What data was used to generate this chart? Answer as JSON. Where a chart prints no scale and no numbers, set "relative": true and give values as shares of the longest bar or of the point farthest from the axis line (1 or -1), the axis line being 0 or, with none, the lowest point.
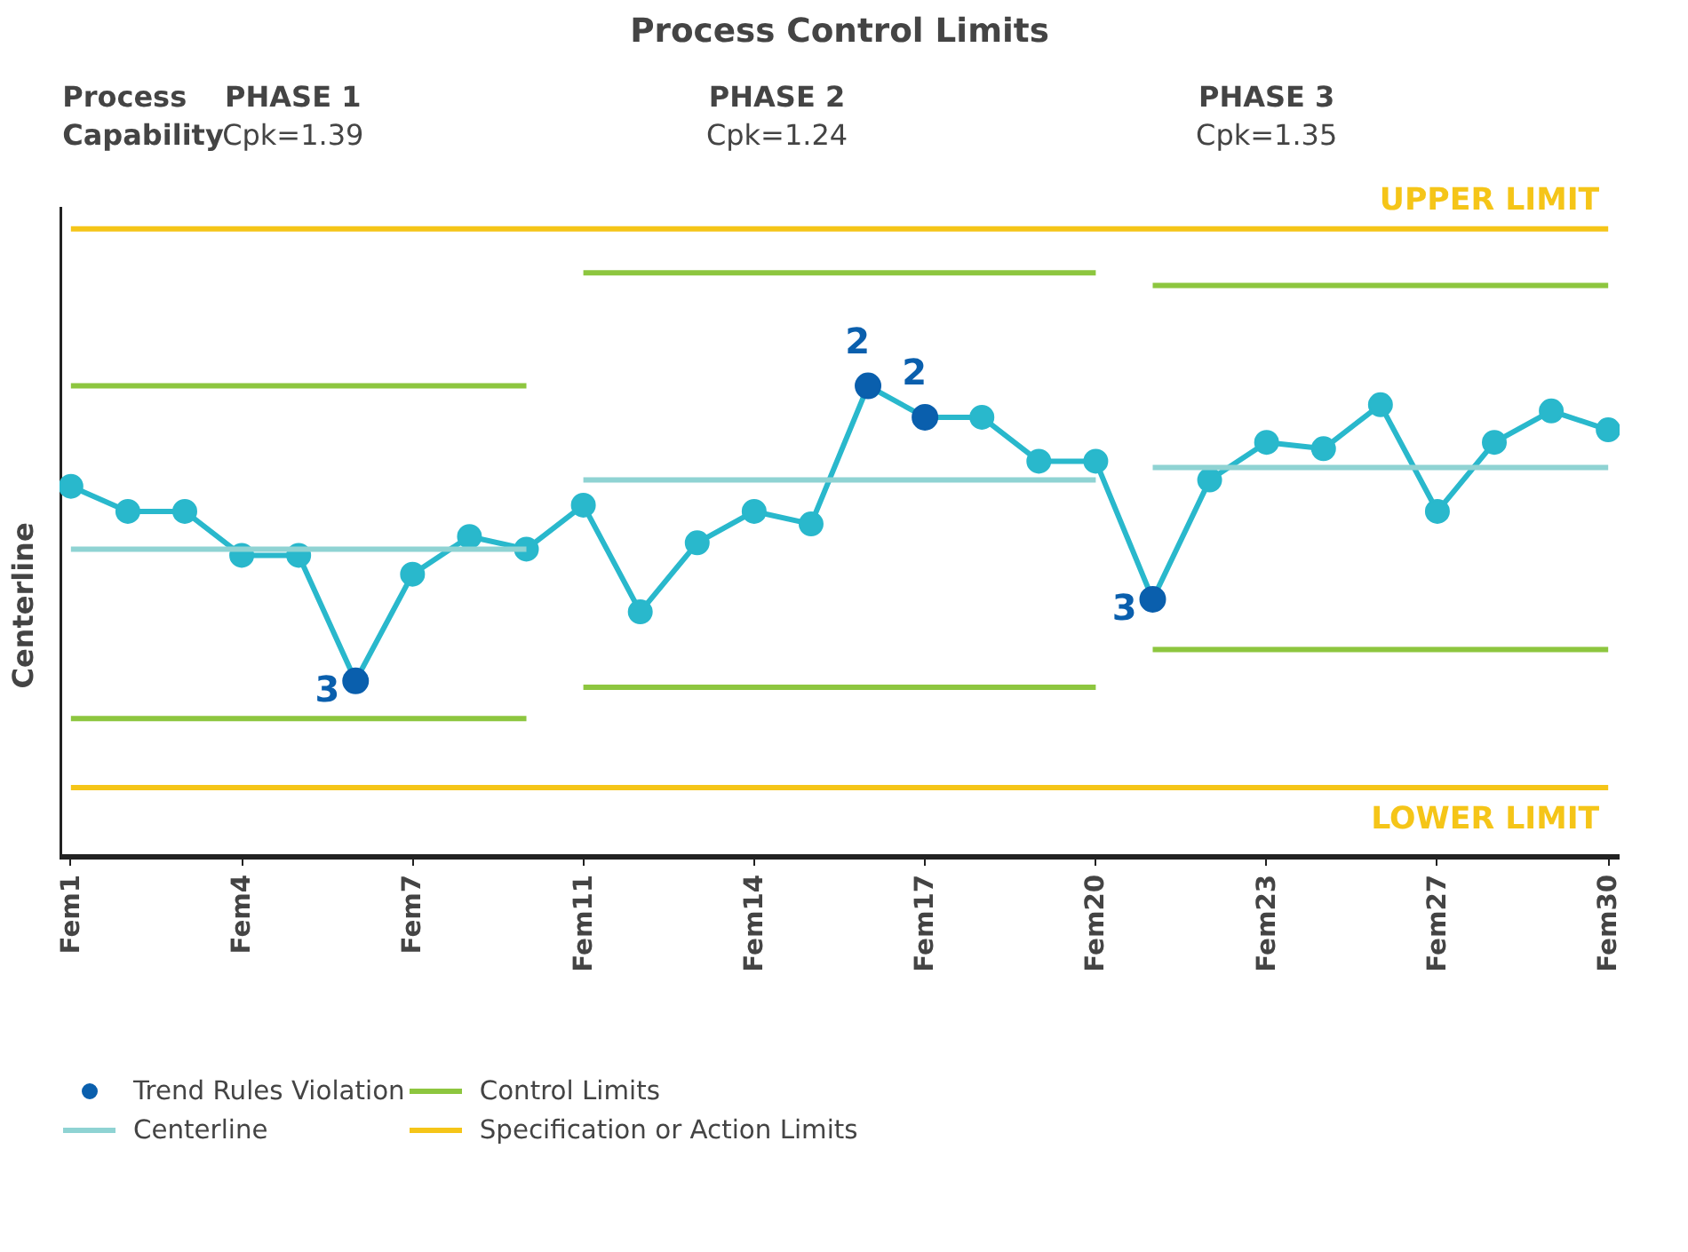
{
  "chart_data": {
    "type": "line",
    "title": "Process Control Limits",
    "ylabel": "Centerline",
    "relative": true,
    "legend": "bottom",
    "categories": [
      "Fem1",
      null,
      null,
      "Fem4",
      null,
      null,
      "Fem7",
      null,
      null,
      "Fem11",
      null,
      null,
      "Fem14",
      null,
      null,
      "Fem17",
      null,
      null,
      "Fem20",
      null,
      null,
      "Fem23",
      null,
      null,
      "Fem27",
      null,
      null,
      "Fem30"
    ],
    "annotations": [
      "Process Capability",
      "PHASE 1",
      "Cpk=1.39",
      "PHASE 2",
      "Cpk=1.24",
      "PHASE 3",
      "Cpk=1.35",
      "UPPER LIMIT",
      "LOWER LIMIT",
      "3",
      "2",
      "2",
      "3"
    ],
    "series": [
      {
        "marker": "circle",
        "color": "#29b8cc",
        "values": [
          0.59,
          0.55,
          0.55,
          0.48,
          0.48,
          0.28,
          0.45,
          0.51,
          0.49,
          0.56,
          0.39,
          0.5,
          0.55,
          0.53,
          0.75,
          0.7,
          0.7,
          0.63,
          0.63,
          0.41,
          0.6,
          0.66,
          0.65,
          0.72,
          0.55,
          0.66,
          0.71,
          0.68
        ]
      },
      {
        "type": "scatter",
        "marker": "circle",
        "name": "Trend Rules Violation",
        "color": "#0a5fad",
        "values": [
          null,
          null,
          null,
          null,
          null,
          0.28,
          null,
          null,
          null,
          null,
          null,
          null,
          null,
          null,
          0.75,
          0.7,
          null,
          null,
          null,
          0.41,
          null,
          null,
          null,
          null,
          null,
          null,
          null,
          null
        ]
      },
      {
        "type": "line",
        "name": "Centerline",
        "color": "#8fd3d3",
        "values": [
          0.49,
          0.49,
          0.49,
          0.49,
          0.49,
          0.49,
          0.49,
          0.49,
          0.49,
          null,
          null,
          null,
          null,
          null,
          null,
          null,
          null,
          null,
          null,
          null,
          null,
          null,
          null,
          null,
          null,
          null,
          null,
          null
        ]
      },
      {
        "type": "line",
        "color": "#8fd3d3",
        "values": [
          null,
          null,
          null,
          null,
          null,
          null,
          null,
          null,
          null,
          0.6,
          0.6,
          0.6,
          0.6,
          0.6,
          0.6,
          0.6,
          0.6,
          0.6,
          0.6,
          null,
          null,
          null,
          null,
          null,
          null,
          null,
          null,
          null
        ]
      },
      {
        "type": "line",
        "color": "#8fd3d3",
        "values": [
          null,
          null,
          null,
          null,
          null,
          null,
          null,
          null,
          null,
          null,
          null,
          null,
          null,
          null,
          null,
          null,
          null,
          null,
          null,
          0.62,
          0.62,
          0.62,
          0.62,
          0.62,
          0.62,
          0.62,
          0.62,
          0.62
        ]
      },
      {
        "type": "line",
        "name": "Control Limits",
        "color": "#8dc63f",
        "values": [
          0.75,
          0.75,
          0.75,
          0.75,
          0.75,
          0.75,
          0.75,
          0.75,
          0.75,
          null,
          null,
          null,
          null,
          null,
          null,
          null,
          null,
          null,
          null,
          null,
          null,
          null,
          null,
          null,
          null,
          null,
          null,
          null
        ]
      },
      {
        "type": "line",
        "color": "#8dc63f",
        "values": [
          0.22,
          0.22,
          0.22,
          0.22,
          0.22,
          0.22,
          0.22,
          0.22,
          0.22,
          null,
          null,
          null,
          null,
          null,
          null,
          null,
          null,
          null,
          null,
          null,
          null,
          null,
          null,
          null,
          null,
          null,
          null,
          null
        ]
      },
      {
        "type": "line",
        "color": "#8dc63f",
        "values": [
          null,
          null,
          null,
          null,
          null,
          null,
          null,
          null,
          null,
          0.93,
          0.93,
          0.93,
          0.93,
          0.93,
          0.93,
          0.93,
          0.93,
          0.93,
          0.93,
          null,
          null,
          null,
          null,
          null,
          null,
          null,
          null,
          null
        ]
      },
      {
        "type": "line",
        "color": "#8dc63f",
        "values": [
          null,
          null,
          null,
          null,
          null,
          null,
          null,
          null,
          null,
          0.27,
          0.27,
          0.27,
          0.27,
          0.27,
          0.27,
          0.27,
          0.27,
          0.27,
          0.27,
          null,
          null,
          null,
          null,
          null,
          null,
          null,
          null,
          null
        ]
      },
      {
        "type": "line",
        "color": "#8dc63f",
        "values": [
          null,
          null,
          null,
          null,
          null,
          null,
          null,
          null,
          null,
          null,
          null,
          null,
          null,
          null,
          null,
          null,
          null,
          null,
          null,
          0.91,
          0.91,
          0.91,
          0.91,
          0.91,
          0.91,
          0.91,
          0.91,
          0.91
        ]
      },
      {
        "type": "line",
        "color": "#8dc63f",
        "values": [
          null,
          null,
          null,
          null,
          null,
          null,
          null,
          null,
          null,
          null,
          null,
          null,
          null,
          null,
          null,
          null,
          null,
          null,
          null,
          0.33,
          0.33,
          0.33,
          0.33,
          0.33,
          0.33,
          0.33,
          0.33,
          0.33
        ]
      },
      {
        "type": "line",
        "name": "Specification or Action Limits",
        "color": "#f5c518",
        "values": [
          1.0,
          1.0,
          1.0,
          1.0,
          1.0,
          1.0,
          1.0,
          1.0,
          1.0,
          1.0,
          1.0,
          1.0,
          1.0,
          1.0,
          1.0,
          1.0,
          1.0,
          1.0,
          1.0,
          1.0,
          1.0,
          1.0,
          1.0,
          1.0,
          1.0,
          1.0,
          1.0,
          1.0
        ]
      },
      {
        "type": "line",
        "color": "#f5c518",
        "values": [
          0.11,
          0.11,
          0.11,
          0.11,
          0.11,
          0.11,
          0.11,
          0.11,
          0.11,
          0.11,
          0.11,
          0.11,
          0.11,
          0.11,
          0.11,
          0.11,
          0.11,
          0.11,
          0.11,
          0.11,
          0.11,
          0.11,
          0.11,
          0.11,
          0.11,
          0.11,
          0.11,
          0.11
        ]
      }
    ]
  }
}
